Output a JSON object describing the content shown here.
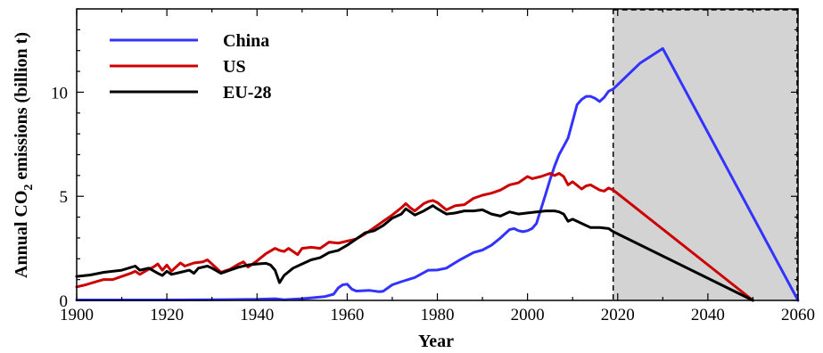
{
  "chart_data": {
    "type": "line",
    "xlabel": "Year",
    "ylabel_main": "Annual CO",
    "ylabel_sub": "2",
    "ylabel_rest": " emissions (billion t)",
    "xlim": [
      1900,
      2060
    ],
    "ylim": [
      0,
      14
    ],
    "xticks": [
      1900,
      1920,
      1940,
      1960,
      1980,
      2000,
      2020,
      2040,
      2060
    ],
    "yticks": [
      0,
      5,
      10
    ],
    "grid": false,
    "legend_position": "top-left",
    "projection_region": {
      "x_start": 2019,
      "x_end": 2060,
      "fill": "#d3d3d3"
    },
    "series": [
      {
        "name": "China",
        "color": "#3333ff",
        "points": [
          [
            1900,
            0.02
          ],
          [
            1910,
            0.02
          ],
          [
            1920,
            0.02
          ],
          [
            1930,
            0.03
          ],
          [
            1940,
            0.05
          ],
          [
            1944,
            0.08
          ],
          [
            1946,
            0.03
          ],
          [
            1950,
            0.08
          ],
          [
            1955,
            0.18
          ],
          [
            1957,
            0.3
          ],
          [
            1958,
            0.6
          ],
          [
            1959,
            0.75
          ],
          [
            1960,
            0.78
          ],
          [
            1961,
            0.55
          ],
          [
            1962,
            0.45
          ],
          [
            1965,
            0.48
          ],
          [
            1967,
            0.42
          ],
          [
            1968,
            0.44
          ],
          [
            1970,
            0.75
          ],
          [
            1972,
            0.9
          ],
          [
            1975,
            1.1
          ],
          [
            1978,
            1.45
          ],
          [
            1980,
            1.46
          ],
          [
            1982,
            1.55
          ],
          [
            1985,
            1.95
          ],
          [
            1988,
            2.3
          ],
          [
            1990,
            2.42
          ],
          [
            1992,
            2.65
          ],
          [
            1994,
            3.0
          ],
          [
            1996,
            3.4
          ],
          [
            1997,
            3.45
          ],
          [
            1998,
            3.35
          ],
          [
            1999,
            3.3
          ],
          [
            2000,
            3.35
          ],
          [
            2001,
            3.45
          ],
          [
            2002,
            3.7
          ],
          [
            2003,
            4.4
          ],
          [
            2004,
            5.1
          ],
          [
            2005,
            5.8
          ],
          [
            2006,
            6.45
          ],
          [
            2007,
            7.0
          ],
          [
            2008,
            7.4
          ],
          [
            2009,
            7.8
          ],
          [
            2010,
            8.6
          ],
          [
            2011,
            9.4
          ],
          [
            2012,
            9.65
          ],
          [
            2013,
            9.8
          ],
          [
            2014,
            9.8
          ],
          [
            2015,
            9.7
          ],
          [
            2016,
            9.55
          ],
          [
            2017,
            9.75
          ],
          [
            2018,
            10.05
          ],
          [
            2019,
            10.15
          ],
          [
            2025,
            11.4
          ],
          [
            2030,
            12.1
          ],
          [
            2060,
            0.0
          ]
        ]
      },
      {
        "name": "US",
        "color": "#cc0000",
        "points": [
          [
            1900,
            0.65
          ],
          [
            1902,
            0.75
          ],
          [
            1904,
            0.88
          ],
          [
            1906,
            1.0
          ],
          [
            1908,
            1.0
          ],
          [
            1910,
            1.15
          ],
          [
            1912,
            1.3
          ],
          [
            1913,
            1.4
          ],
          [
            1914,
            1.25
          ],
          [
            1916,
            1.5
          ],
          [
            1917,
            1.6
          ],
          [
            1918,
            1.75
          ],
          [
            1919,
            1.45
          ],
          [
            1920,
            1.7
          ],
          [
            1921,
            1.4
          ],
          [
            1923,
            1.8
          ],
          [
            1924,
            1.65
          ],
          [
            1926,
            1.8
          ],
          [
            1928,
            1.85
          ],
          [
            1929,
            1.95
          ],
          [
            1930,
            1.75
          ],
          [
            1932,
            1.35
          ],
          [
            1934,
            1.5
          ],
          [
            1936,
            1.75
          ],
          [
            1937,
            1.85
          ],
          [
            1938,
            1.6
          ],
          [
            1940,
            1.9
          ],
          [
            1942,
            2.25
          ],
          [
            1944,
            2.5
          ],
          [
            1945,
            2.4
          ],
          [
            1946,
            2.35
          ],
          [
            1947,
            2.5
          ],
          [
            1949,
            2.2
          ],
          [
            1950,
            2.5
          ],
          [
            1952,
            2.55
          ],
          [
            1954,
            2.5
          ],
          [
            1956,
            2.8
          ],
          [
            1958,
            2.75
          ],
          [
            1960,
            2.85
          ],
          [
            1962,
            2.95
          ],
          [
            1964,
            3.2
          ],
          [
            1966,
            3.5
          ],
          [
            1968,
            3.8
          ],
          [
            1970,
            4.1
          ],
          [
            1972,
            4.45
          ],
          [
            1973,
            4.65
          ],
          [
            1974,
            4.45
          ],
          [
            1975,
            4.3
          ],
          [
            1977,
            4.65
          ],
          [
            1978,
            4.75
          ],
          [
            1979,
            4.8
          ],
          [
            1980,
            4.7
          ],
          [
            1982,
            4.35
          ],
          [
            1984,
            4.55
          ],
          [
            1986,
            4.6
          ],
          [
            1988,
            4.9
          ],
          [
            1990,
            5.05
          ],
          [
            1992,
            5.15
          ],
          [
            1994,
            5.3
          ],
          [
            1996,
            5.55
          ],
          [
            1998,
            5.65
          ],
          [
            2000,
            5.95
          ],
          [
            2001,
            5.85
          ],
          [
            2003,
            5.95
          ],
          [
            2005,
            6.1
          ],
          [
            2006,
            6.0
          ],
          [
            2007,
            6.1
          ],
          [
            2008,
            5.95
          ],
          [
            2009,
            5.55
          ],
          [
            2010,
            5.7
          ],
          [
            2012,
            5.35
          ],
          [
            2013,
            5.5
          ],
          [
            2014,
            5.55
          ],
          [
            2016,
            5.3
          ],
          [
            2017,
            5.25
          ],
          [
            2018,
            5.4
          ],
          [
            2019,
            5.3
          ],
          [
            2050,
            0.0
          ]
        ]
      },
      {
        "name": "EU-28",
        "color": "#000000",
        "points": [
          [
            1900,
            1.15
          ],
          [
            1903,
            1.22
          ],
          [
            1906,
            1.35
          ],
          [
            1910,
            1.45
          ],
          [
            1913,
            1.65
          ],
          [
            1914,
            1.45
          ],
          [
            1916,
            1.55
          ],
          [
            1918,
            1.3
          ],
          [
            1919,
            1.2
          ],
          [
            1920,
            1.4
          ],
          [
            1921,
            1.25
          ],
          [
            1923,
            1.35
          ],
          [
            1925,
            1.45
          ],
          [
            1926,
            1.3
          ],
          [
            1927,
            1.55
          ],
          [
            1929,
            1.65
          ],
          [
            1930,
            1.55
          ],
          [
            1932,
            1.3
          ],
          [
            1934,
            1.45
          ],
          [
            1936,
            1.6
          ],
          [
            1938,
            1.7
          ],
          [
            1940,
            1.75
          ],
          [
            1942,
            1.78
          ],
          [
            1943,
            1.7
          ],
          [
            1944,
            1.45
          ],
          [
            1945,
            0.85
          ],
          [
            1946,
            1.2
          ],
          [
            1948,
            1.55
          ],
          [
            1950,
            1.75
          ],
          [
            1952,
            1.95
          ],
          [
            1954,
            2.05
          ],
          [
            1956,
            2.3
          ],
          [
            1958,
            2.4
          ],
          [
            1960,
            2.65
          ],
          [
            1962,
            2.95
          ],
          [
            1964,
            3.25
          ],
          [
            1966,
            3.35
          ],
          [
            1968,
            3.6
          ],
          [
            1970,
            3.95
          ],
          [
            1972,
            4.15
          ],
          [
            1973,
            4.4
          ],
          [
            1974,
            4.25
          ],
          [
            1975,
            4.1
          ],
          [
            1977,
            4.3
          ],
          [
            1979,
            4.55
          ],
          [
            1980,
            4.4
          ],
          [
            1982,
            4.15
          ],
          [
            1984,
            4.2
          ],
          [
            1986,
            4.3
          ],
          [
            1988,
            4.3
          ],
          [
            1990,
            4.35
          ],
          [
            1992,
            4.15
          ],
          [
            1994,
            4.05
          ],
          [
            1996,
            4.25
          ],
          [
            1998,
            4.15
          ],
          [
            2000,
            4.2
          ],
          [
            2002,
            4.25
          ],
          [
            2004,
            4.3
          ],
          [
            2006,
            4.3
          ],
          [
            2007,
            4.25
          ],
          [
            2008,
            4.15
          ],
          [
            2009,
            3.8
          ],
          [
            2010,
            3.9
          ],
          [
            2012,
            3.7
          ],
          [
            2014,
            3.5
          ],
          [
            2016,
            3.5
          ],
          [
            2018,
            3.45
          ],
          [
            2019,
            3.3
          ],
          [
            2050,
            0.0
          ]
        ]
      }
    ]
  }
}
